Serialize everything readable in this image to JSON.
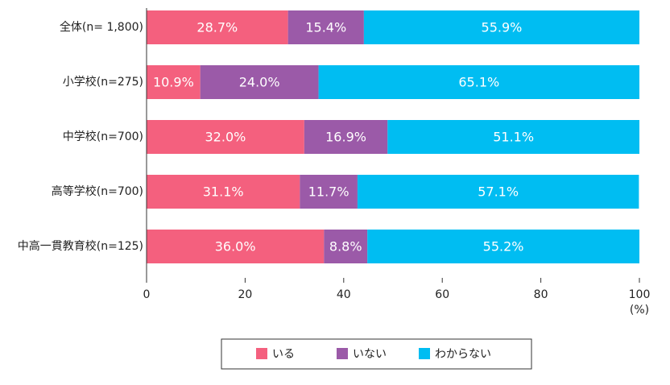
{
  "chart_data": {
    "type": "stacked-barh",
    "categories": [
      "全体(n= 1,800)",
      "小学校(n=275)",
      "中学校(n=700)",
      "高等学校(n=700)",
      "中高一貫教育校(n=125)"
    ],
    "series": [
      {
        "name": "いる",
        "color": "#f4607e",
        "values": [
          28.7,
          10.9,
          32.0,
          31.1,
          36.0
        ],
        "value_labels": [
          "28.7%",
          "10.9%",
          "32.0%",
          "31.1%",
          "36.0%"
        ]
      },
      {
        "name": "いない",
        "color": "#9b5aa8",
        "values": [
          15.4,
          24.0,
          16.9,
          11.7,
          8.8
        ],
        "value_labels": [
          "15.4%",
          "24.0%",
          "16.9%",
          "11.7%",
          "8.8%"
        ]
      },
      {
        "name": "わからない",
        "color": "#00bdf2",
        "values": [
          55.9,
          65.1,
          51.1,
          57.1,
          55.2
        ],
        "value_labels": [
          "55.9%",
          "65.1%",
          "51.1%",
          "57.1%",
          "55.2%"
        ]
      }
    ],
    "xlim": [
      0,
      100
    ],
    "xticks": [
      0,
      20,
      40,
      60,
      80,
      100
    ],
    "x_unit": "(%)",
    "legend": "bottom"
  }
}
